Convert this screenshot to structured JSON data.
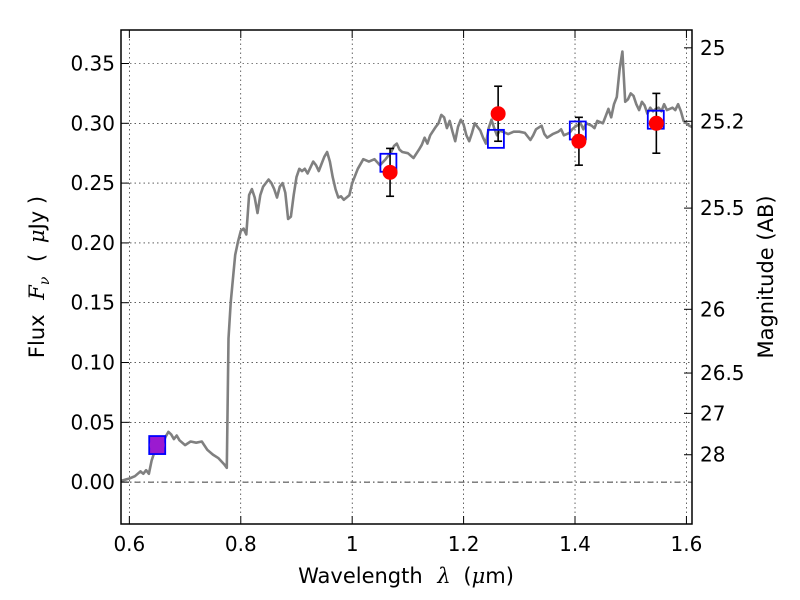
{
  "chart_data": {
    "type": "line",
    "xlabel_text": "Wavelength",
    "xlabel_symbol": "λ",
    "xlabel_unit_open": "(",
    "xlabel_unit_mu": "μ",
    "xlabel_unit_rest": "m)",
    "ylabel_text": "Flux",
    "ylabel_symbol": "F",
    "ylabel_sub": "ν",
    "ylabel_unit_open": "(",
    "ylabel_unit_mu": "μ",
    "ylabel_unit_rest": "Jy )",
    "y2label": "Magnitude (AB)",
    "xlim": [
      0.585,
      1.61
    ],
    "ylim": [
      -0.035,
      0.378
    ],
    "grid": true,
    "x_ticks": [
      0.6,
      0.8,
      1.0,
      1.2,
      1.4,
      1.6
    ],
    "x_tick_labels": [
      "0.6",
      "0.8",
      "1",
      "1.2",
      "1.4",
      "1.6"
    ],
    "y_ticks": [
      0.0,
      0.05,
      0.1,
      0.15,
      0.2,
      0.25,
      0.3,
      0.35
    ],
    "y_tick_labels": [
      "0.00",
      "0.05",
      "0.10",
      "0.15",
      "0.20",
      "0.25",
      "0.30",
      "0.35"
    ],
    "y2_ticks": [
      {
        "flux": 0.3631,
        "label": "25"
      },
      {
        "flux": 0.3017,
        "label": "25.2"
      },
      {
        "flux": 0.2291,
        "label": "25.5"
      },
      {
        "flux": 0.1445,
        "label": "26"
      },
      {
        "flux": 0.0912,
        "label": "26.5"
      },
      {
        "flux": 0.0575,
        "label": "27"
      },
      {
        "flux": 0.0229,
        "label": "28"
      }
    ],
    "zero_line": 0.0,
    "colors": {
      "spectrum": "#808080",
      "observed": "#ff0000",
      "model": "#0000ff",
      "errorbar": "#000000",
      "combined": "#9b1ad0"
    },
    "series": [
      {
        "style": "spectrum-line",
        "points": [
          [
            0.585,
            0.001
          ],
          [
            0.6,
            0.003
          ],
          [
            0.61,
            0.005
          ],
          [
            0.62,
            0.009
          ],
          [
            0.625,
            0.007
          ],
          [
            0.63,
            0.01
          ],
          [
            0.635,
            0.007
          ],
          [
            0.64,
            0.018
          ],
          [
            0.645,
            0.025
          ],
          [
            0.65,
            0.028
          ],
          [
            0.655,
            0.03
          ],
          [
            0.66,
            0.032
          ],
          [
            0.665,
            0.038
          ],
          [
            0.67,
            0.042
          ],
          [
            0.675,
            0.04
          ],
          [
            0.68,
            0.036
          ],
          [
            0.685,
            0.039
          ],
          [
            0.69,
            0.035
          ],
          [
            0.7,
            0.031
          ],
          [
            0.71,
            0.034
          ],
          [
            0.72,
            0.033
          ],
          [
            0.73,
            0.034
          ],
          [
            0.74,
            0.027
          ],
          [
            0.75,
            0.023
          ],
          [
            0.76,
            0.02
          ],
          [
            0.77,
            0.015
          ],
          [
            0.775,
            0.012
          ],
          [
            0.778,
            0.12
          ],
          [
            0.782,
            0.15
          ],
          [
            0.787,
            0.175
          ],
          [
            0.79,
            0.19
          ],
          [
            0.795,
            0.201
          ],
          [
            0.8,
            0.21
          ],
          [
            0.805,
            0.212
          ],
          [
            0.81,
            0.207
          ],
          [
            0.815,
            0.24
          ],
          [
            0.82,
            0.245
          ],
          [
            0.825,
            0.238
          ],
          [
            0.83,
            0.225
          ],
          [
            0.835,
            0.24
          ],
          [
            0.84,
            0.247
          ],
          [
            0.845,
            0.25
          ],
          [
            0.85,
            0.253
          ],
          [
            0.855,
            0.25
          ],
          [
            0.86,
            0.245
          ],
          [
            0.865,
            0.238
          ],
          [
            0.87,
            0.247
          ],
          [
            0.875,
            0.25
          ],
          [
            0.88,
            0.242
          ],
          [
            0.885,
            0.22
          ],
          [
            0.89,
            0.222
          ],
          [
            0.895,
            0.24
          ],
          [
            0.9,
            0.255
          ],
          [
            0.905,
            0.262
          ],
          [
            0.91,
            0.26
          ],
          [
            0.915,
            0.262
          ],
          [
            0.92,
            0.258
          ],
          [
            0.925,
            0.263
          ],
          [
            0.93,
            0.268
          ],
          [
            0.935,
            0.265
          ],
          [
            0.94,
            0.26
          ],
          [
            0.945,
            0.266
          ],
          [
            0.95,
            0.272
          ],
          [
            0.955,
            0.276
          ],
          [
            0.96,
            0.268
          ],
          [
            0.965,
            0.255
          ],
          [
            0.97,
            0.245
          ],
          [
            0.975,
            0.238
          ],
          [
            0.98,
            0.239
          ],
          [
            0.985,
            0.236
          ],
          [
            0.99,
            0.238
          ],
          [
            0.995,
            0.24
          ],
          [
            1.0,
            0.25
          ],
          [
            1.01,
            0.262
          ],
          [
            1.02,
            0.27
          ],
          [
            1.03,
            0.268
          ],
          [
            1.04,
            0.27
          ],
          [
            1.05,
            0.265
          ],
          [
            1.06,
            0.27
          ],
          [
            1.07,
            0.276
          ],
          [
            1.075,
            0.281
          ],
          [
            1.08,
            0.283
          ],
          [
            1.085,
            0.278
          ],
          [
            1.09,
            0.276
          ],
          [
            1.1,
            0.275
          ],
          [
            1.11,
            0.271
          ],
          [
            1.12,
            0.278
          ],
          [
            1.125,
            0.282
          ],
          [
            1.13,
            0.288
          ],
          [
            1.135,
            0.283
          ],
          [
            1.14,
            0.29
          ],
          [
            1.15,
            0.297
          ],
          [
            1.155,
            0.3
          ],
          [
            1.16,
            0.307
          ],
          [
            1.165,
            0.305
          ],
          [
            1.17,
            0.296
          ],
          [
            1.175,
            0.302
          ],
          [
            1.18,
            0.293
          ],
          [
            1.185,
            0.285
          ],
          [
            1.19,
            0.297
          ],
          [
            1.195,
            0.303
          ],
          [
            1.2,
            0.299
          ],
          [
            1.205,
            0.29
          ],
          [
            1.21,
            0.285
          ],
          [
            1.215,
            0.292
          ],
          [
            1.22,
            0.3
          ],
          [
            1.23,
            0.294
          ],
          [
            1.235,
            0.288
          ],
          [
            1.24,
            0.283
          ],
          [
            1.245,
            0.296
          ],
          [
            1.25,
            0.303
          ],
          [
            1.255,
            0.296
          ],
          [
            1.26,
            0.29
          ],
          [
            1.265,
            0.294
          ],
          [
            1.27,
            0.293
          ],
          [
            1.28,
            0.291
          ],
          [
            1.29,
            0.293
          ],
          [
            1.3,
            0.293
          ],
          [
            1.31,
            0.292
          ],
          [
            1.32,
            0.286
          ],
          [
            1.325,
            0.29
          ],
          [
            1.33,
            0.295
          ],
          [
            1.34,
            0.298
          ],
          [
            1.345,
            0.291
          ],
          [
            1.35,
            0.288
          ],
          [
            1.36,
            0.291
          ],
          [
            1.37,
            0.293
          ],
          [
            1.375,
            0.295
          ],
          [
            1.38,
            0.29
          ],
          [
            1.39,
            0.292
          ],
          [
            1.395,
            0.295
          ],
          [
            1.4,
            0.297
          ],
          [
            1.41,
            0.3
          ],
          [
            1.415,
            0.295
          ],
          [
            1.42,
            0.3
          ],
          [
            1.43,
            0.298
          ],
          [
            1.435,
            0.296
          ],
          [
            1.44,
            0.302
          ],
          [
            1.445,
            0.301
          ],
          [
            1.45,
            0.3
          ],
          [
            1.455,
            0.306
          ],
          [
            1.46,
            0.312
          ],
          [
            1.465,
            0.305
          ],
          [
            1.47,
            0.316
          ],
          [
            1.475,
            0.322
          ],
          [
            1.48,
            0.345
          ],
          [
            1.485,
            0.36
          ],
          [
            1.49,
            0.318
          ],
          [
            1.495,
            0.32
          ],
          [
            1.5,
            0.325
          ],
          [
            1.505,
            0.323
          ],
          [
            1.51,
            0.316
          ],
          [
            1.515,
            0.311
          ],
          [
            1.52,
            0.318
          ],
          [
            1.525,
            0.315
          ],
          [
            1.53,
            0.308
          ],
          [
            1.535,
            0.313
          ],
          [
            1.54,
            0.31
          ],
          [
            1.545,
            0.312
          ],
          [
            1.55,
            0.313
          ],
          [
            1.555,
            0.31
          ],
          [
            1.56,
            0.316
          ],
          [
            1.565,
            0.311
          ],
          [
            1.57,
            0.312
          ],
          [
            1.575,
            0.313
          ],
          [
            1.58,
            0.311
          ],
          [
            1.585,
            0.316
          ],
          [
            1.59,
            0.31
          ],
          [
            1.595,
            0.302
          ],
          [
            1.6,
            0.3
          ],
          [
            1.605,
            0.298
          ],
          [
            1.61,
            0.297
          ]
        ]
      },
      {
        "style": "model-squares",
        "points": [
          [
            0.65,
            0.031
          ],
          [
            1.065,
            0.267
          ],
          [
            1.258,
            0.287
          ],
          [
            1.405,
            0.294
          ],
          [
            1.545,
            0.303
          ]
        ]
      },
      {
        "style": "observed-errorbars",
        "points": [
          {
            "x": 0.65,
            "y": 0.031,
            "err": 0.0
          },
          {
            "x": 1.068,
            "y": 0.259,
            "err": 0.02
          },
          {
            "x": 1.262,
            "y": 0.308,
            "err": 0.023
          },
          {
            "x": 1.407,
            "y": 0.285,
            "err": 0.02
          },
          {
            "x": 1.546,
            "y": 0.3,
            "err": 0.025
          }
        ]
      }
    ]
  }
}
